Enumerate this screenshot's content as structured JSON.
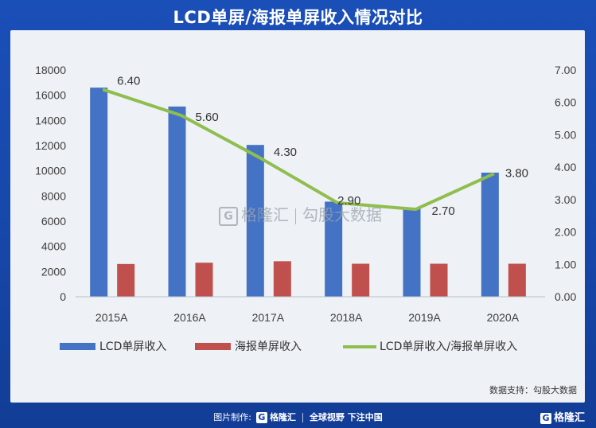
{
  "title": "LCD单屏/海报单屏收入情况对比",
  "source": "数据支持：勾股大数据",
  "watermark": {
    "brand": "格隆汇",
    "sub": "勾股大数据",
    "icon": "G"
  },
  "footer": {
    "made_by": "图片制作:",
    "brand": "格隆汇",
    "slogan": "全球视野 下注中国",
    "right_brand": "格隆汇",
    "icon": "G"
  },
  "colors": {
    "bar1": "#4472c4",
    "bar2": "#c0504d",
    "line": "#8fbe4e",
    "background": "#1646a8",
    "panel": "#eef1f5"
  },
  "chart_data": {
    "type": "bar",
    "categories": [
      "2015A",
      "2016A",
      "2017A",
      "2018A",
      "2019A",
      "2020A"
    ],
    "series": [
      {
        "name": "LCD单屏收入",
        "type": "bar",
        "axis": "left",
        "values": [
          16600,
          15100,
          12050,
          7550,
          7050,
          9850
        ]
      },
      {
        "name": "海报单屏收入",
        "type": "bar",
        "axis": "left",
        "values": [
          2600,
          2700,
          2820,
          2620,
          2620,
          2620
        ]
      },
      {
        "name": "LCD单屏收入/海报单屏收入",
        "type": "line",
        "axis": "right",
        "values": [
          6.4,
          5.6,
          4.3,
          2.9,
          2.7,
          3.8
        ],
        "labels": [
          "6.40",
          "5.60",
          "4.30",
          "2.90",
          "2.70",
          "3.80"
        ]
      }
    ],
    "y_left": {
      "min": 0,
      "max": 18000,
      "ticks": [
        "0",
        "2000",
        "4000",
        "6000",
        "8000",
        "10000",
        "12000",
        "14000",
        "16000",
        "18000"
      ]
    },
    "y_right": {
      "min": 0,
      "max": 7,
      "ticks": [
        "0.00",
        "1.00",
        "2.00",
        "3.00",
        "4.00",
        "5.00",
        "6.00",
        "7.00"
      ]
    },
    "grid": false,
    "legend_position": "bottom"
  }
}
